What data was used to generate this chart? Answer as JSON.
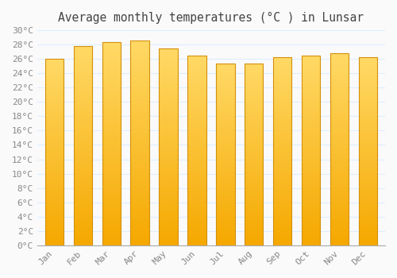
{
  "title": "Average monthly temperatures (°C ) in Lunsar",
  "months": [
    "Jan",
    "Feb",
    "Mar",
    "Apr",
    "May",
    "Jun",
    "Jul",
    "Aug",
    "Sep",
    "Oct",
    "Nov",
    "Dec"
  ],
  "values": [
    26.0,
    27.8,
    28.3,
    28.6,
    27.5,
    26.5,
    25.4,
    25.4,
    26.2,
    26.5,
    26.8,
    26.2
  ],
  "bar_color_bottom": "#F5A800",
  "bar_color_top": "#FFD966",
  "bar_edge_color": "#D4900A",
  "background_color": "#FAFAFA",
  "grid_color": "#DDEEFF",
  "ylim": [
    0,
    30
  ],
  "ytick_step": 2,
  "title_fontsize": 10.5,
  "tick_fontsize": 8,
  "tick_color": "#888888",
  "bar_width": 0.65
}
